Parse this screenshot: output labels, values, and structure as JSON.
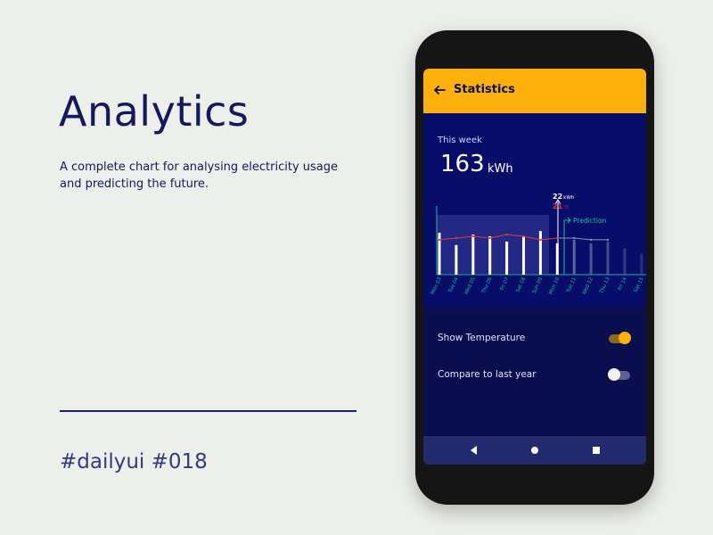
{
  "intro": {
    "headline": "Analytics",
    "description": "A complete chart for analysing electricity usage and predicting the future.",
    "hashtag": "#dailyui #018"
  },
  "app": {
    "title": "Statistics",
    "back_icon": "arrow-left-icon",
    "week_label": "This week",
    "total_value": "163",
    "total_unit": "kWh",
    "marker": {
      "energy_value": "22",
      "energy_unit": "kWh",
      "temp_value": "21",
      "temp_unit": "°C",
      "prediction_label": "Prediction"
    },
    "settings": [
      {
        "label": "Show Temperature",
        "on": true
      },
      {
        "label": "Compare to last year",
        "on": false
      }
    ],
    "nav": {
      "back_icon": "triangle-back-icon",
      "home_icon": "circle-home-icon",
      "recent_icon": "square-recent-icon"
    }
  },
  "colors": {
    "accent": "#fcb00c",
    "navy": "#0a0e4f",
    "prediction": "#18c09a",
    "temperature": "#e0393e"
  },
  "chart_data": {
    "type": "bar",
    "categories": [
      "Mon 03",
      "Tue 04",
      "Wed 05",
      "Thu 06",
      "Fri 07",
      "Sat 08",
      "Sun 09",
      "Mon 10",
      "Tue 11",
      "Wed 12",
      "Thu 13",
      "Fri 14",
      "Sat 15"
    ],
    "series": [
      {
        "values": [
          24,
          17,
          23,
          22,
          19,
          22,
          25,
          18,
          20,
          18,
          19,
          15,
          12
        ]
      },
      {
        "values": [
          20,
          21,
          22,
          21,
          23,
          22,
          20,
          21,
          21,
          20,
          20,
          null,
          null
        ]
      }
    ],
    "prediction_start": "Tue 11",
    "ylim": [
      0,
      44
    ]
  }
}
